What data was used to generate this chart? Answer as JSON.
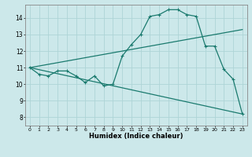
{
  "title": "",
  "xlabel": "Humidex (Indice chaleur)",
  "bg_color": "#cce8ea",
  "grid_color": "#aed4d6",
  "line_color": "#1a7a6e",
  "xlim": [
    -0.5,
    23.5
  ],
  "ylim": [
    7.5,
    14.8
  ],
  "xticks": [
    0,
    1,
    2,
    3,
    4,
    5,
    6,
    7,
    8,
    9,
    10,
    11,
    12,
    13,
    14,
    15,
    16,
    17,
    18,
    19,
    20,
    21,
    22,
    23
  ],
  "yticks": [
    8,
    9,
    10,
    11,
    12,
    13,
    14
  ],
  "series1_x": [
    0,
    1,
    2,
    3,
    4,
    5,
    6,
    7,
    8,
    9,
    10,
    11,
    12,
    13,
    14,
    15,
    16,
    17,
    18,
    19,
    20,
    21,
    22,
    23
  ],
  "series1_y": [
    11.0,
    10.6,
    10.5,
    10.8,
    10.8,
    10.5,
    10.1,
    10.5,
    9.9,
    10.0,
    11.7,
    12.4,
    13.0,
    14.1,
    14.2,
    14.5,
    14.5,
    14.2,
    14.1,
    12.3,
    12.3,
    10.9,
    10.3,
    8.2
  ],
  "series2_x": [
    0,
    23
  ],
  "series2_y": [
    11.0,
    13.3
  ],
  "series3_x": [
    0,
    23
  ],
  "series3_y": [
    11.0,
    8.2
  ],
  "marker_size": 2.5,
  "line_width": 0.9
}
